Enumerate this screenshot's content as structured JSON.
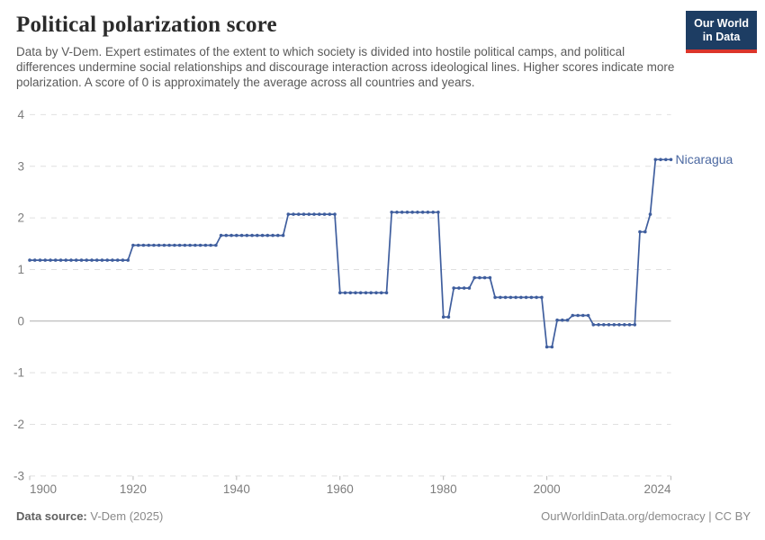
{
  "header": {
    "title": "Political polarization score",
    "subtitle": "Data by V-Dem. Expert estimates of the extent to which society is divided into hostile political camps, and political differences undermine social relationships and discourage interaction across ideological lines. Higher scores indicate more polarization. A score of 0 is approximately the average across all countries and years.",
    "logo_line1": "Our World",
    "logo_line2": "in Data"
  },
  "colors": {
    "line": "#3f5e9e",
    "end_label": "#4b68a1",
    "grid": "#e0e0e0",
    "zero_line": "#adadad",
    "axis_tick": "#bbbbbb",
    "logo_bg": "#1d3d63",
    "logo_stripe": "#dc352b"
  },
  "chart_data": {
    "type": "line",
    "title": "Political polarization score",
    "xlabel": "",
    "ylabel": "",
    "grid": "horizontal dashed gridlines, solid line at zero",
    "legend_position": "end-of-line label",
    "x": {
      "range": [
        1900,
        2024
      ],
      "tick_values": [
        1900,
        1920,
        1940,
        1960,
        1980,
        2000,
        2024
      ],
      "tick_labels": [
        "1900",
        "1920",
        "1940",
        "1960",
        "1980",
        "2000",
        "2024"
      ]
    },
    "y": {
      "range": [
        -3,
        4
      ],
      "tick_values": [
        4,
        3,
        2,
        1,
        0,
        -1,
        -2,
        -3
      ],
      "tick_labels": [
        "4",
        "3",
        "2",
        "1",
        "0",
        "-1",
        "-2",
        "-3"
      ]
    },
    "series": [
      {
        "name": "Nicaragua",
        "color": "#3f5e9e",
        "segments": [
          {
            "from_year": 1900,
            "to_year": 1919,
            "value": 1.18
          },
          {
            "from_year": 1920,
            "to_year": 1936,
            "value": 1.47
          },
          {
            "from_year": 1937,
            "to_year": 1949,
            "value": 1.66
          },
          {
            "from_year": 1950,
            "to_year": 1959,
            "value": 2.07
          },
          {
            "from_year": 1960,
            "to_year": 1969,
            "value": 0.55
          },
          {
            "from_year": 1970,
            "to_year": 1979,
            "value": 2.11
          },
          {
            "from_year": 1980,
            "to_year": 1981,
            "value": 0.08
          },
          {
            "from_year": 1982,
            "to_year": 1985,
            "value": 0.64
          },
          {
            "from_year": 1986,
            "to_year": 1989,
            "value": 0.84
          },
          {
            "from_year": 1990,
            "to_year": 1999,
            "value": 0.46
          },
          {
            "from_year": 2000,
            "to_year": 2001,
            "value": -0.5
          },
          {
            "from_year": 2002,
            "to_year": 2004,
            "value": 0.02
          },
          {
            "from_year": 2005,
            "to_year": 2008,
            "value": 0.11
          },
          {
            "from_year": 2009,
            "to_year": 2017,
            "value": -0.07
          },
          {
            "from_year": 2018,
            "to_year": 2019,
            "value": 1.73
          },
          {
            "from_year": 2020,
            "to_year": 2020,
            "value": 2.07
          },
          {
            "from_year": 2021,
            "to_year": 2024,
            "value": 3.13
          }
        ]
      }
    ]
  },
  "footer": {
    "source_label": "Data source:",
    "source_value": "V-Dem (2025)",
    "attribution": "OurWorldinData.org/democracy | CC BY"
  }
}
